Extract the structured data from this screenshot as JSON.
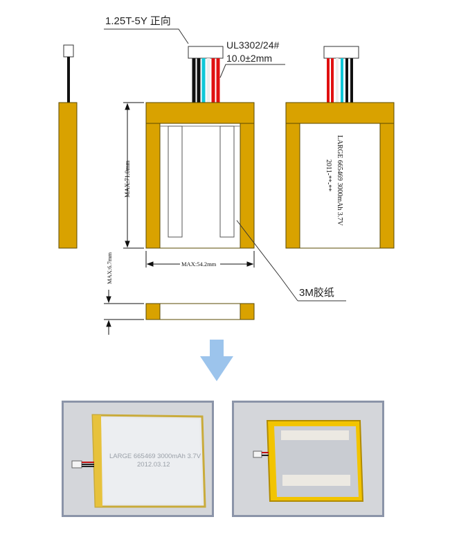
{
  "drawing": {
    "connector_label": "1.25T-5Y 正向",
    "wire_spec": "UL3302/24#",
    "wire_length": "10.0±2mm",
    "height_dim": "MAX:71.0mm",
    "width_dim": "MAX:54.2mm",
    "thickness_dim": "MAX:6.7mm",
    "tape_label": "3M胶纸",
    "back_label_line1": "LARGE 665469 3000mAh 3.7V",
    "back_label_line2": "2011-**-**"
  },
  "arrow": {
    "color": "#9cc4ec",
    "icon": "down-arrow-icon"
  },
  "photos": {
    "front_label_line1": "LARGE 665469 3000mAh 3.7V",
    "front_label_line2": "2012.03.12"
  },
  "colors": {
    "tape_gold": "#d9a200",
    "tape_outline": "#5a4a00",
    "wire_red": "#e01010",
    "wire_cyan": "#10c8d8",
    "wire_black": "#111111",
    "photo_frame": "#8b94a8"
  }
}
